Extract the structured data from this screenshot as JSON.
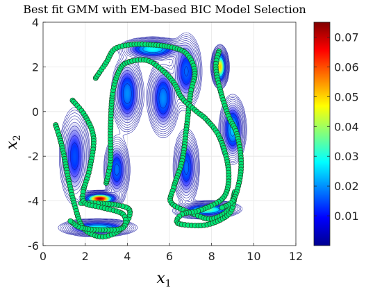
{
  "chart_data": {
    "type": "contour",
    "title": "Best fit GMM with EM-based BIC Model Selection",
    "xlabel": "x",
    "xlabel_sub": "1",
    "ylabel": "x",
    "ylabel_sub": "2",
    "xlim": [
      0,
      12
    ],
    "ylim": [
      -6,
      4
    ],
    "xticks": [
      0,
      2,
      4,
      6,
      8,
      10,
      12
    ],
    "yticks": [
      -6,
      -4,
      -2,
      0,
      2,
      4
    ],
    "grid": true,
    "colormap": "jet",
    "colorbar": {
      "range": [
        0,
        0.075
      ],
      "ticks": [
        0.01,
        0.02,
        0.03,
        0.04,
        0.05,
        0.06,
        0.07
      ],
      "tick_labels": [
        "0.01",
        "0.02",
        "0.03",
        "0.04",
        "0.05",
        "0.06",
        "0.07"
      ]
    },
    "gmm_components": [
      {
        "mean": [
          2.7,
          -3.9
        ],
        "sigma": [
          0.35,
          0.12
        ],
        "rho": 0.0,
        "peak": 0.074
      },
      {
        "mean": [
          8.4,
          2.0
        ],
        "sigma": [
          0.15,
          0.35
        ],
        "rho": 0.0,
        "peak": 0.052
      },
      {
        "mean": [
          7.8,
          -4.4
        ],
        "sigma": [
          0.6,
          0.15
        ],
        "rho": 0.1,
        "peak": 0.036
      },
      {
        "mean": [
          2.6,
          -5.2
        ],
        "sigma": [
          0.7,
          0.15
        ],
        "rho": 0.0,
        "peak": 0.03
      },
      {
        "mean": [
          5.2,
          2.8
        ],
        "sigma": [
          0.6,
          0.2
        ],
        "rho": 0.0,
        "peak": 0.03
      },
      {
        "mean": [
          9.0,
          -0.8
        ],
        "sigma": [
          0.25,
          0.6
        ],
        "rho": 0.0,
        "peak": 0.025
      },
      {
        "mean": [
          4.0,
          0.8
        ],
        "sigma": [
          0.3,
          0.7
        ],
        "rho": 0.0,
        "peak": 0.02
      },
      {
        "mean": [
          5.7,
          0.6
        ],
        "sigma": [
          0.3,
          0.7
        ],
        "rho": 0.0,
        "peak": 0.02
      },
      {
        "mean": [
          3.5,
          -2.6
        ],
        "sigma": [
          0.25,
          0.6
        ],
        "rho": 0.0,
        "peak": 0.018
      },
      {
        "mean": [
          6.8,
          -2.5
        ],
        "sigma": [
          0.25,
          0.7
        ],
        "rho": 0.0,
        "peak": 0.018
      },
      {
        "mean": [
          1.5,
          -2.0
        ],
        "sigma": [
          0.3,
          0.9
        ],
        "rho": 0.0,
        "peak": 0.015
      },
      {
        "mean": [
          6.8,
          1.8
        ],
        "sigma": [
          0.3,
          0.7
        ],
        "rho": 0.0,
        "peak": 0.017
      }
    ],
    "series": [
      {
        "marker": "circle",
        "marker_color": "#00e676",
        "edge_color": "#1f4d2c",
        "trajectories": [
          [
            [
              0.6,
              -0.6
            ],
            [
              0.8,
              -1.2
            ],
            [
              1.0,
              -2.0
            ],
            [
              1.2,
              -3.0
            ],
            [
              1.5,
              -4.2
            ],
            [
              1.9,
              -5.2
            ],
            [
              2.7,
              -5.6
            ],
            [
              3.5,
              -5.4
            ],
            [
              4.0,
              -4.9
            ],
            [
              4.1,
              -4.4
            ],
            [
              3.6,
              -4.2
            ],
            [
              2.6,
              -4.1
            ],
            [
              1.8,
              -4.1
            ]
          ],
          [
            [
              1.4,
              0.5
            ],
            [
              2.0,
              -0.2
            ],
            [
              2.4,
              -1.2
            ],
            [
              2.2,
              -2.6
            ],
            [
              1.9,
              -3.6
            ],
            [
              2.0,
              -4.1
            ],
            [
              2.8,
              -4.3
            ],
            [
              3.8,
              -4.6
            ],
            [
              3.8,
              -5.2
            ],
            [
              2.8,
              -5.3
            ],
            [
              1.8,
              -5.2
            ],
            [
              1.3,
              -4.9
            ]
          ],
          [
            [
              2.5,
              1.5
            ],
            [
              3.0,
              2.2
            ],
            [
              3.4,
              2.8
            ],
            [
              4.2,
              3.0
            ],
            [
              5.0,
              3.0
            ],
            [
              6.0,
              2.9
            ],
            [
              6.8,
              2.6
            ],
            [
              7.2,
              1.8
            ],
            [
              7.0,
              0.8
            ],
            [
              6.8,
              -0.8
            ],
            [
              6.6,
              -2.2
            ],
            [
              6.2,
              -3.4
            ],
            [
              6.1,
              -4.1
            ],
            [
              7.2,
              -4.6
            ],
            [
              8.0,
              -4.8
            ],
            [
              8.8,
              -4.4
            ],
            [
              9.1,
              -3.6
            ]
          ],
          [
            [
              3.0,
              -3.2
            ],
            [
              3.2,
              -2.2
            ],
            [
              3.2,
              -0.8
            ],
            [
              3.3,
              0.8
            ],
            [
              3.6,
              1.8
            ],
            [
              4.0,
              2.2
            ],
            [
              4.9,
              2.3
            ],
            [
              5.6,
              1.9
            ],
            [
              6.2,
              1.3
            ],
            [
              6.6,
              0.6
            ],
            [
              7.3,
              0.0
            ],
            [
              7.8,
              -0.4
            ],
            [
              8.4,
              -1.2
            ],
            [
              8.8,
              -2.6
            ],
            [
              8.6,
              -3.8
            ],
            [
              7.5,
              -4.4
            ],
            [
              6.6,
              -4.6
            ],
            [
              6.4,
              -5.0
            ],
            [
              7.5,
              -5.1
            ],
            [
              8.3,
              -4.9
            ],
            [
              8.9,
              -4.5
            ],
            [
              9.1,
              -3.8
            ]
          ],
          [
            [
              8.35,
              2.7
            ],
            [
              8.2,
              2.0
            ],
            [
              8.4,
              1.0
            ],
            [
              8.8,
              -0.2
            ],
            [
              9.2,
              -1.0
            ],
            [
              9.4,
              -2.2
            ],
            [
              9.3,
              -3.2
            ],
            [
              9.0,
              -4.0
            ],
            [
              8.5,
              -4.3
            ]
          ]
        ]
      }
    ]
  }
}
